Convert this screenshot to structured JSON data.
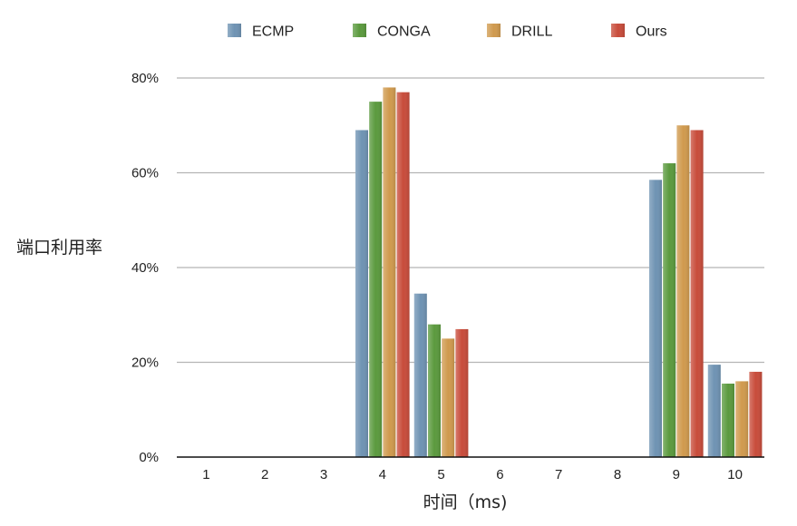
{
  "chart_data": {
    "type": "bar",
    "title": "",
    "xlabel": "时间（ms)",
    "ylabel": "端口利用率",
    "categories": [
      "1",
      "2",
      "3",
      "4",
      "5",
      "6",
      "7",
      "8",
      "9",
      "10"
    ],
    "ylim": [
      0,
      80
    ],
    "yticks": [
      0,
      20,
      40,
      60,
      80
    ],
    "ytick_labels": [
      "0%",
      "20%",
      "40%",
      "60%",
      "80%"
    ],
    "grid": "horizontal",
    "legend_position": "top",
    "series": [
      {
        "name": "ECMP",
        "color": "#6f93b3",
        "values": [
          0,
          0,
          0,
          69,
          34.5,
          0,
          0,
          0,
          58.5,
          19.5
        ]
      },
      {
        "name": "CONGA",
        "color": "#5b9a3e",
        "values": [
          0,
          0,
          0,
          75,
          28,
          0,
          0,
          0,
          62,
          15.5
        ]
      },
      {
        "name": "DRILL",
        "color": "#d09a4e",
        "values": [
          0,
          0,
          0,
          78,
          25,
          0,
          0,
          0,
          70,
          16
        ]
      },
      {
        "name": "Ours",
        "color": "#c84c3b",
        "values": [
          0,
          0,
          0,
          77,
          27,
          0,
          0,
          0,
          69,
          18
        ]
      }
    ]
  }
}
